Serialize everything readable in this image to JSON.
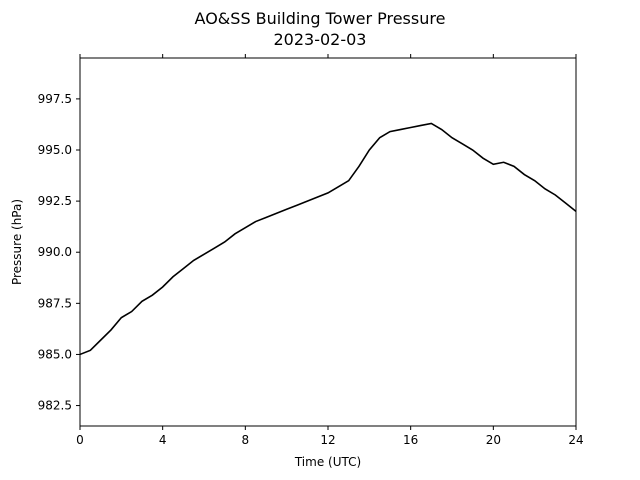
{
  "chart_data": {
    "type": "line",
    "title": "AO&SS Building Tower Pressure",
    "subtitle": "2023-02-03",
    "xlabel": "Time (UTC)",
    "ylabel": "Pressure (hPa)",
    "xlim": [
      0,
      24
    ],
    "ylim": [
      981.5,
      999.5
    ],
    "xticks": [
      0,
      4,
      8,
      12,
      16,
      20,
      24
    ],
    "xtick_labels": [
      "0",
      "4",
      "8",
      "12",
      "16",
      "20",
      "24"
    ],
    "yticks": [
      982.5,
      985.0,
      987.5,
      990.0,
      992.5,
      995.0,
      997.5
    ],
    "ytick_labels": [
      "982.5",
      "985.0",
      "987.5",
      "990.0",
      "992.5",
      "995.0",
      "997.5"
    ],
    "grid": false,
    "colors": {
      "line": "#000000",
      "axes": "#000000",
      "background": "#ffffff"
    },
    "series": [
      {
        "x": [
          0,
          0.5,
          1,
          1.5,
          2,
          2.5,
          3,
          3.5,
          4,
          4.5,
          5,
          5.5,
          6,
          6.5,
          7,
          7.5,
          8,
          8.5,
          9,
          9.5,
          10,
          10.5,
          11,
          11.5,
          12,
          12.5,
          13,
          13.5,
          14,
          14.5,
          15,
          15.5,
          16,
          16.5,
          17,
          17.5,
          18,
          18.5,
          19,
          19.5,
          20,
          20.5,
          21,
          21.5,
          22,
          22.5,
          23,
          23.5,
          24
        ],
        "y": [
          985.0,
          985.2,
          985.7,
          986.2,
          986.8,
          987.1,
          987.6,
          987.9,
          988.3,
          988.8,
          989.2,
          989.6,
          989.9,
          990.2,
          990.5,
          990.9,
          991.2,
          991.5,
          991.7,
          991.9,
          992.1,
          992.3,
          992.5,
          992.7,
          992.9,
          993.2,
          993.5,
          994.2,
          995.0,
          995.6,
          995.9,
          996.0,
          996.1,
          996.2,
          996.3,
          996.0,
          995.6,
          995.3,
          995.0,
          994.6,
          994.3,
          994.4,
          994.2,
          993.8,
          993.5,
          993.1,
          992.8,
          992.4,
          992.0
        ]
      }
    ]
  }
}
